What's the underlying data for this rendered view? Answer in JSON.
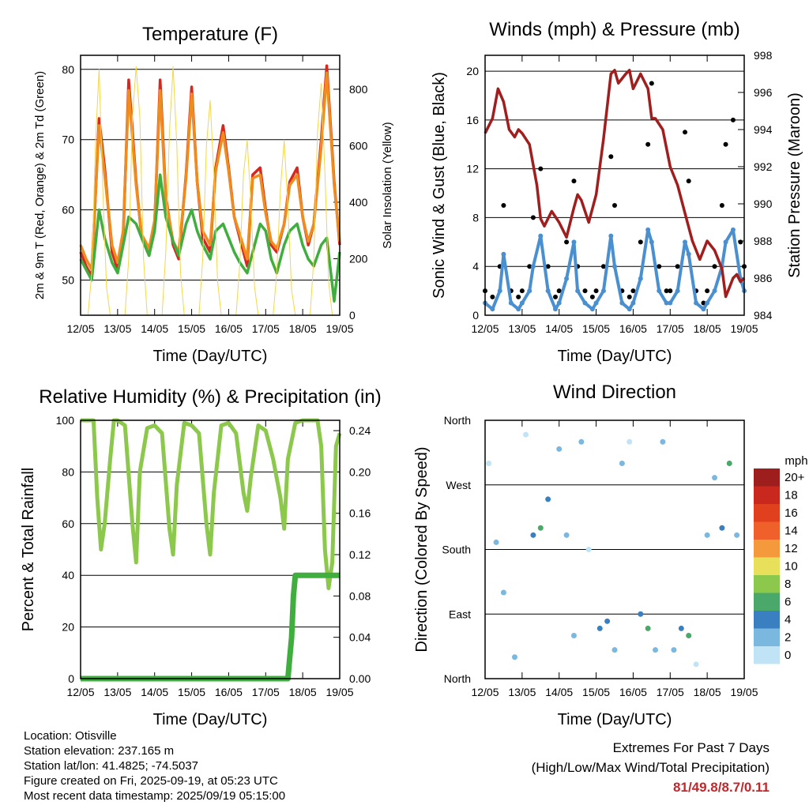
{
  "chart_data": [
    {
      "type": "line",
      "title": "Temperature (F)",
      "xlabel": "Time (Day/UTC)",
      "ylabel": "2m & 9m T (Red, Orange) & 2m Td (Green)",
      "ylabel_right": "Solar Insolation (Yellow)",
      "x_ticks": [
        "12/05",
        "13/05",
        "14/05",
        "15/05",
        "16/05",
        "17/05",
        "18/05",
        "19/05"
      ],
      "ylim": [
        45,
        82
      ],
      "y_ticks": [
        50,
        60,
        70,
        80
      ],
      "ylim_right": [
        0,
        920
      ],
      "y_ticks_right": [
        0,
        200,
        400,
        600,
        800
      ],
      "grid": true,
      "series": [
        {
          "name": "2m T",
          "color": "#d6281e",
          "x": [
            0,
            0.15,
            0.3,
            0.5,
            0.65,
            0.85,
            1.0,
            1.15,
            1.3,
            1.5,
            1.65,
            1.85,
            2.0,
            2.15,
            2.3,
            2.5,
            2.65,
            2.85,
            3.0,
            3.15,
            3.3,
            3.5,
            3.65,
            3.85,
            4.0,
            4.15,
            4.3,
            4.5,
            4.65,
            4.85,
            5.0,
            5.15,
            5.3,
            5.5,
            5.65,
            5.85,
            6.0,
            6.15,
            6.3,
            6.5,
            6.65,
            6.85,
            7.0
          ],
          "values": [
            54,
            52,
            50.5,
            73,
            66,
            54,
            51.5,
            56,
            78.5,
            64,
            56,
            53.5,
            58,
            78.5,
            62,
            55,
            53,
            65,
            77.5,
            64,
            56,
            54,
            66,
            72,
            66,
            59,
            56,
            52,
            65,
            66,
            60,
            55,
            54,
            58,
            64,
            66,
            59,
            55,
            58,
            70,
            80.5,
            64,
            55
          ]
        },
        {
          "name": "9m T",
          "color": "#f08c1e",
          "x": [
            0,
            0.15,
            0.3,
            0.5,
            0.65,
            0.85,
            1.0,
            1.15,
            1.3,
            1.5,
            1.65,
            1.85,
            2.0,
            2.15,
            2.3,
            2.5,
            2.65,
            2.85,
            3.0,
            3.15,
            3.3,
            3.5,
            3.65,
            3.85,
            4.0,
            4.15,
            4.3,
            4.5,
            4.65,
            4.85,
            5.0,
            5.15,
            5.3,
            5.5,
            5.65,
            5.85,
            6.0,
            6.15,
            6.3,
            6.5,
            6.65,
            6.85,
            7.0
          ],
          "values": [
            55,
            53,
            51.5,
            72,
            65,
            55,
            52.5,
            57,
            77,
            63.5,
            56.5,
            54.5,
            58.5,
            77,
            61.5,
            55.5,
            54,
            64.5,
            76.5,
            64,
            57,
            55,
            65.5,
            71,
            65.5,
            59,
            56.5,
            53,
            64.5,
            65,
            59.5,
            55.5,
            54.5,
            58,
            63.5,
            65,
            59,
            55.5,
            58,
            69,
            79.5,
            63.5,
            55.5
          ]
        },
        {
          "name": "2m Td",
          "color": "#3fae3f",
          "x": [
            0,
            0.15,
            0.3,
            0.5,
            0.65,
            0.85,
            1.0,
            1.15,
            1.3,
            1.5,
            1.65,
            1.85,
            2.0,
            2.15,
            2.3,
            2.5,
            2.65,
            2.85,
            3.0,
            3.15,
            3.3,
            3.5,
            3.65,
            3.85,
            4.0,
            4.15,
            4.3,
            4.5,
            4.65,
            4.85,
            5.0,
            5.15,
            5.3,
            5.5,
            5.65,
            5.85,
            6.0,
            6.15,
            6.3,
            6.5,
            6.65,
            6.85,
            7.0
          ],
          "values": [
            53,
            51.5,
            50,
            60,
            56,
            52.5,
            51,
            55,
            59,
            58,
            56,
            53.5,
            57,
            65,
            59,
            55.5,
            53.5,
            58,
            60,
            57,
            55,
            53,
            57,
            58,
            56,
            54,
            52.5,
            51,
            54,
            58,
            57,
            53,
            51,
            55,
            57,
            58,
            55,
            53,
            52,
            55,
            56,
            47,
            54
          ]
        },
        {
          "name": "Solar Insolation",
          "color": "#f2d64b",
          "axis": "right",
          "x": [
            0,
            0.2,
            0.3,
            0.4,
            0.5,
            0.6,
            0.7,
            0.8,
            1.0,
            1.2,
            1.3,
            1.4,
            1.5,
            1.6,
            1.7,
            1.8,
            2.0,
            2.2,
            2.3,
            2.4,
            2.5,
            2.6,
            2.7,
            2.8,
            3.0,
            3.2,
            3.3,
            3.4,
            3.5,
            3.6,
            3.7,
            3.8,
            4.0,
            4.2,
            4.3,
            4.4,
            4.5,
            4.6,
            4.7,
            4.8,
            5.0,
            5.2,
            5.3,
            5.4,
            5.5,
            5.6,
            5.7,
            5.8,
            6.0,
            6.2,
            6.3,
            6.4,
            6.5,
            6.6,
            6.7,
            6.8,
            7.0
          ],
          "values": [
            0,
            0,
            150,
            600,
            870,
            450,
            100,
            0,
            0,
            0,
            200,
            700,
            880,
            700,
            200,
            0,
            0,
            0,
            220,
            650,
            880,
            600,
            150,
            0,
            0,
            0,
            200,
            600,
            760,
            500,
            120,
            0,
            0,
            0,
            180,
            500,
            620,
            400,
            100,
            0,
            0,
            0,
            150,
            450,
            620,
            380,
            90,
            0,
            0,
            0,
            200,
            650,
            820,
            500,
            120,
            0,
            0
          ]
        }
      ]
    },
    {
      "type": "scatter",
      "title": "Winds (mph) & Pressure (mb)",
      "xlabel": "Time (Day/UTC)",
      "ylabel": "Sonic Wind & Gust (Blue, Black)",
      "ylabel_right": "Station Pressure (Maroon)",
      "x_ticks": [
        "12/05",
        "13/05",
        "14/05",
        "15/05",
        "16/05",
        "17/05",
        "18/05",
        "19/05"
      ],
      "ylim": [
        0,
        21.3
      ],
      "y_ticks": [
        0,
        4,
        8,
        12,
        16,
        20
      ],
      "ylim_right": [
        984,
        998
      ],
      "y_ticks_right": [
        984,
        986,
        988,
        990,
        992,
        994,
        996,
        998
      ],
      "grid": true,
      "series": [
        {
          "name": "Sonic Wind",
          "color": "#4a90d0",
          "x": [
            0,
            0.2,
            0.4,
            0.5,
            0.7,
            0.9,
            1.0,
            1.2,
            1.3,
            1.5,
            1.7,
            1.9,
            2.0,
            2.2,
            2.4,
            2.5,
            2.7,
            2.9,
            3.0,
            3.2,
            3.4,
            3.5,
            3.7,
            3.9,
            4.0,
            4.2,
            4.4,
            4.5,
            4.7,
            4.9,
            5.0,
            5.2,
            5.4,
            5.5,
            5.7,
            5.9,
            6.0,
            6.2,
            6.4,
            6.5,
            6.7,
            6.9,
            7.0
          ],
          "values": [
            1,
            0.5,
            2,
            5,
            1,
            0.5,
            1,
            2,
            4,
            6.5,
            2,
            0.5,
            1,
            3,
            6,
            2,
            1,
            0.5,
            1,
            2,
            6.5,
            4,
            1,
            0.5,
            1,
            3,
            7,
            6,
            2,
            1,
            1,
            2,
            6,
            5,
            1,
            0.5,
            1,
            2,
            4,
            6,
            7,
            3,
            2
          ]
        },
        {
          "name": "Gust",
          "color": "#000000",
          "x": [
            0,
            0.2,
            0.4,
            0.5,
            0.7,
            0.9,
            1.0,
            1.2,
            1.3,
            1.5,
            1.7,
            1.9,
            2.0,
            2.2,
            2.4,
            2.5,
            2.7,
            2.9,
            3.0,
            3.2,
            3.4,
            3.5,
            3.7,
            3.9,
            4.0,
            4.2,
            4.4,
            4.5,
            4.7,
            4.9,
            5.0,
            5.2,
            5.4,
            5.5,
            5.7,
            5.9,
            6.0,
            6.2,
            6.4,
            6.5,
            6.7,
            6.9,
            7.0
          ],
          "values": [
            2,
            1.5,
            4,
            9,
            2,
            1.5,
            2,
            4,
            8,
            12,
            4,
            1.5,
            2,
            6,
            11,
            4,
            2,
            1.5,
            2,
            4,
            13,
            9,
            2,
            1.5,
            2,
            6,
            14,
            19,
            4,
            2,
            2,
            4,
            15,
            11,
            2,
            1,
            2,
            4,
            9,
            14,
            16,
            6,
            4
          ]
        },
        {
          "name": "Station Pressure",
          "color": "#a01e1e",
          "axis": "right",
          "x": [
            0,
            0.2,
            0.35,
            0.5,
            0.65,
            0.8,
            0.9,
            1.0,
            1.2,
            1.4,
            1.5,
            1.6,
            1.8,
            2.0,
            2.2,
            2.4,
            2.5,
            2.6,
            2.8,
            3.0,
            3.2,
            3.4,
            3.5,
            3.6,
            3.8,
            3.9,
            4.0,
            4.2,
            4.4,
            4.5,
            4.6,
            4.8,
            5.0,
            5.2,
            5.4,
            5.6,
            5.8,
            6.0,
            6.2,
            6.4,
            6.5,
            6.6,
            6.7,
            6.8,
            6.9,
            7.0
          ],
          "values": [
            993.8,
            994.6,
            996.2,
            995.5,
            994.0,
            993.6,
            994.0,
            993.8,
            993.2,
            991.0,
            989.2,
            988.8,
            989.6,
            989.0,
            988.2,
            989.8,
            990.5,
            990.2,
            989.0,
            990.5,
            993.5,
            997.0,
            997.2,
            996.5,
            997.0,
            997.2,
            996.2,
            997.0,
            996.2,
            994.6,
            994.6,
            994.0,
            992.0,
            991.0,
            989.5,
            988.0,
            987.0,
            988.0,
            987.5,
            986.5,
            985.0,
            985.5,
            986.0,
            986.2,
            985.8,
            986.0
          ]
        }
      ]
    },
    {
      "type": "line",
      "title": "Relative Humidity (%) & Precipitation (in)",
      "xlabel": "Time (Day/UTC)",
      "ylabel": "Percent & Total Rainfall",
      "x_ticks": [
        "12/05",
        "13/05",
        "14/05",
        "15/05",
        "16/05",
        "17/05",
        "18/05",
        "19/05"
      ],
      "ylim": [
        0,
        100
      ],
      "y_ticks": [
        0,
        20,
        40,
        60,
        80,
        100
      ],
      "ylim_right": [
        0,
        0.25
      ],
      "y_ticks_right": [
        "0.00",
        "0.04",
        "0.08",
        "0.12",
        "0.16",
        "0.20",
        "0.24"
      ],
      "grid": true,
      "series": [
        {
          "name": "Relative Humidity",
          "color": "#8cc84b",
          "x": [
            0,
            0.2,
            0.35,
            0.45,
            0.55,
            0.65,
            0.8,
            0.9,
            1.0,
            1.2,
            1.4,
            1.5,
            1.6,
            1.8,
            2.0,
            2.2,
            2.4,
            2.5,
            2.6,
            2.8,
            3.0,
            3.2,
            3.4,
            3.5,
            3.6,
            3.8,
            4.0,
            4.2,
            4.4,
            4.5,
            4.6,
            4.8,
            5.0,
            5.2,
            5.4,
            5.5,
            5.6,
            5.8,
            6.0,
            6.2,
            6.4,
            6.5,
            6.6,
            6.7,
            6.8,
            6.9,
            7.0
          ],
          "values": [
            100,
            100,
            100,
            70,
            50,
            60,
            85,
            100,
            100,
            98,
            60,
            45,
            80,
            97,
            98,
            95,
            58,
            48,
            75,
            99,
            98,
            95,
            60,
            48,
            72,
            98,
            99,
            95,
            72,
            65,
            78,
            98,
            96,
            85,
            70,
            58,
            85,
            99,
            100,
            100,
            100,
            90,
            50,
            35,
            45,
            90,
            95
          ]
        },
        {
          "name": "Total Precipitation",
          "color": "#3fae3f",
          "axis": "right",
          "x": [
            0,
            5.5,
            5.6,
            5.65,
            5.7,
            5.75,
            5.8,
            6.0,
            7.0
          ],
          "values": [
            0,
            0,
            0,
            0.02,
            0.04,
            0.08,
            0.1,
            0.1,
            0.1
          ]
        }
      ]
    },
    {
      "type": "scatter",
      "title": "Wind Direction",
      "xlabel": "Time (Day/UTC)",
      "ylabel": "Direction (Colored By Speed)",
      "x_ticks": [
        "12/05",
        "13/05",
        "14/05",
        "15/05",
        "16/05",
        "17/05",
        "18/05",
        "19/05"
      ],
      "y_ticks": [
        "North",
        "East",
        "South",
        "West",
        "North"
      ],
      "ylim": [
        0,
        360
      ],
      "grid": true,
      "legend": {
        "title": "mph",
        "labels": [
          "20+",
          "18",
          "16",
          "14",
          "12",
          "10",
          "8",
          "6",
          "4",
          "2",
          "0"
        ],
        "colors": [
          "#9e1e1e",
          "#c8281e",
          "#e0401e",
          "#f0602a",
          "#f59a3c",
          "#e8e05a",
          "#8cc84b",
          "#4aa86a",
          "#3a80c0",
          "#7ab8e0",
          "#c0e4f5"
        ],
        "position": "right"
      },
      "series": [
        {
          "name": "Direction",
          "x": [
            0.1,
            0.3,
            0.5,
            0.8,
            1.1,
            1.3,
            1.5,
            1.7,
            2.0,
            2.2,
            2.4,
            2.6,
            2.8,
            3.1,
            3.3,
            3.5,
            3.7,
            3.9,
            4.2,
            4.4,
            4.6,
            4.8,
            5.1,
            5.3,
            5.5,
            5.7,
            6.0,
            6.2,
            6.4,
            6.6,
            6.8
          ],
          "values": [
            300,
            190,
            120,
            30,
            340,
            200,
            210,
            250,
            320,
            200,
            60,
            330,
            180,
            70,
            80,
            40,
            300,
            330,
            90,
            70,
            40,
            330,
            40,
            70,
            60,
            20,
            200,
            280,
            210,
            300,
            200
          ],
          "speeds": [
            1,
            2,
            3,
            2,
            1,
            4,
            6,
            5,
            2,
            3,
            2,
            3,
            1,
            4,
            5,
            3,
            2,
            1,
            4,
            6,
            3,
            2,
            3,
            5,
            7,
            1,
            2,
            3,
            4,
            6,
            3
          ]
        }
      ]
    }
  ],
  "info": {
    "location": "Location: Otisville",
    "elevation": "Station elevation: 237.165 m",
    "latlon": "Station lat/lon: 41.4825; -74.5037",
    "created": "Figure created on Fri, 2025-09-19, at 05:23 UTC",
    "recent": "Most recent data timestamp: 2025/09/19 05:15:00"
  },
  "extremes": {
    "line1": "Extremes For Past 7 Days",
    "line2": "(High/Low/Max Wind/Total Precipitation)",
    "values": "81/49.8/8.7/0.11"
  }
}
